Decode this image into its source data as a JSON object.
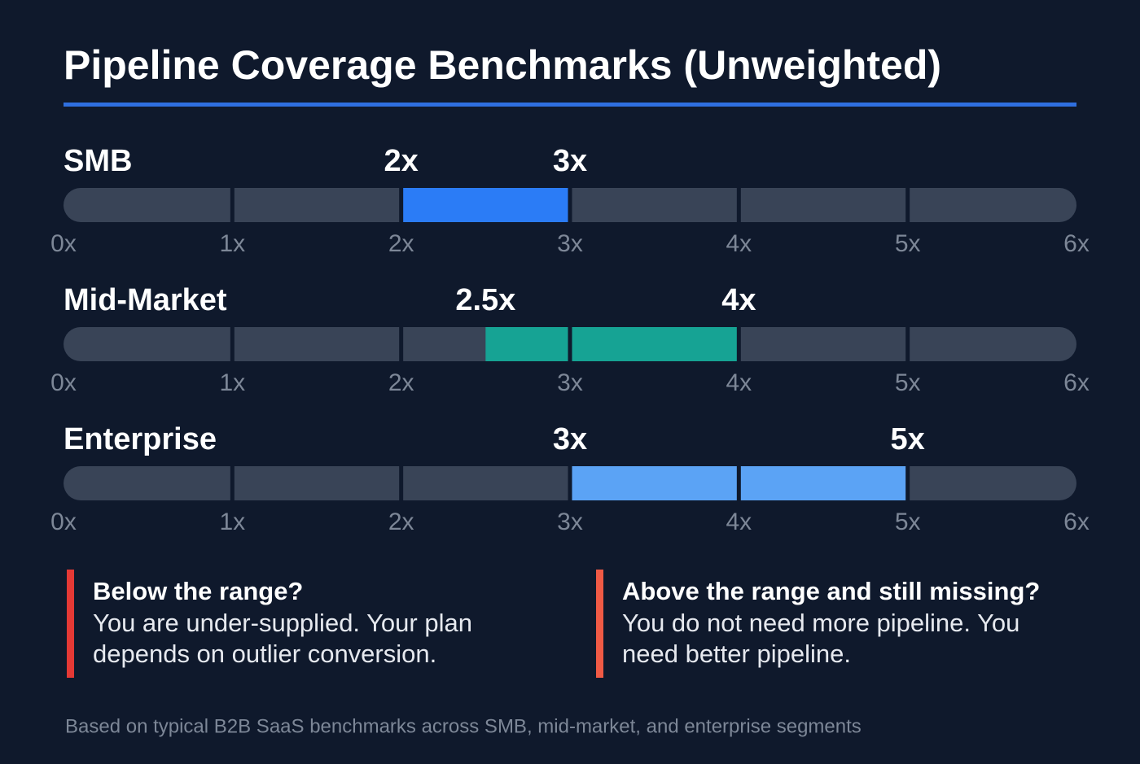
{
  "chart_data": {
    "type": "range",
    "title": "Pipeline Coverage Benchmarks (Unweighted)",
    "categories": [
      "SMB",
      "Mid-Market",
      "Enterprise"
    ],
    "low": [
      2,
      2.5,
      3
    ],
    "low_labels": [
      "2x",
      "2.5x",
      "3x"
    ],
    "high": [
      3,
      4,
      5
    ],
    "high_labels": [
      "3x",
      "4x",
      "5x"
    ],
    "colors": [
      "#2b7cf6",
      "#16a394",
      "#5ba3f5"
    ],
    "track_color": "#394457",
    "xlim": [
      0,
      6
    ],
    "xticks": [
      {
        "value": 0,
        "label": "0x"
      },
      {
        "value": 1,
        "label": "1x"
      },
      {
        "value": 2,
        "label": "2x"
      },
      {
        "value": 3,
        "label": "3x"
      },
      {
        "value": 4,
        "label": "4x"
      },
      {
        "value": 5,
        "label": "5x"
      },
      {
        "value": 6,
        "label": "6x"
      }
    ],
    "annotations": [
      {
        "title": "Below the range?",
        "lines": [
          "You are under-supplied. Your plan",
          "depends on outlier conversion."
        ],
        "color": "#e53935"
      },
      {
        "title": "Above the range and still missing?",
        "lines": [
          "You do not need more pipeline. You",
          "need better pipeline."
        ],
        "color": "#f05a45"
      }
    ],
    "footnote": "Based on typical B2B SaaS benchmarks across SMB, mid-market, and enterprise segments"
  }
}
